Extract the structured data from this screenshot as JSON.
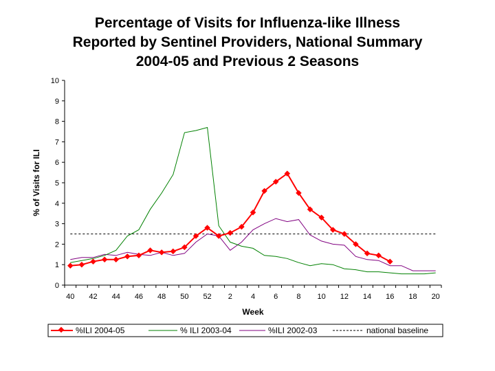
{
  "chart_data": {
    "type": "line",
    "title": [
      "Percentage of Visits for Influenza-like Illness",
      "Reported by Sentinel Providers, National Summary",
      "2004-05 and Previous 2 Seasons"
    ],
    "xlabel": "Week",
    "ylabel": "% of Visits for ILI",
    "ylim": [
      0,
      10
    ],
    "yticks": [
      0,
      1,
      2,
      3,
      4,
      5,
      6,
      7,
      8,
      9,
      10
    ],
    "weeks": [
      40,
      41,
      42,
      43,
      44,
      45,
      46,
      47,
      48,
      49,
      50,
      51,
      52,
      1,
      2,
      3,
      4,
      5,
      6,
      7,
      8,
      9,
      10,
      11,
      12,
      13,
      14,
      15,
      16,
      17,
      18,
      19,
      20
    ],
    "xtick_labels": [
      "40",
      "42",
      "44",
      "46",
      "48",
      "50",
      "52",
      "2",
      "4",
      "6",
      "8",
      "10",
      "12",
      "14",
      "16",
      "18",
      "20"
    ],
    "grid": false,
    "legend_position": "bottom",
    "series": [
      {
        "name": "%ILI 2004-05",
        "color": "#ff0000",
        "marker": "diamond",
        "values": [
          0.95,
          1.0,
          1.15,
          1.25,
          1.25,
          1.4,
          1.45,
          1.7,
          1.6,
          1.65,
          1.85,
          2.4,
          2.8,
          2.4,
          2.55,
          2.85,
          3.55,
          4.6,
          5.05,
          5.45,
          4.5,
          3.7,
          3.3,
          2.7,
          2.5,
          2.0,
          1.55,
          1.45,
          1.15
        ]
      },
      {
        "name": "% ILI 2003-04",
        "color": "#008000",
        "marker": "none",
        "values": [
          1.1,
          1.2,
          1.3,
          1.45,
          1.7,
          2.4,
          2.7,
          3.7,
          4.5,
          5.4,
          7.45,
          7.55,
          7.7,
          2.9,
          2.1,
          1.9,
          1.8,
          1.45,
          1.4,
          1.3,
          1.1,
          0.95,
          1.05,
          1.0,
          0.8,
          0.75,
          0.65,
          0.65,
          0.6,
          0.55,
          0.55,
          0.55,
          0.6
        ]
      },
      {
        "name": "%ILI 2002-03",
        "color": "#800080",
        "marker": "none",
        "values": [
          1.25,
          1.35,
          1.35,
          1.5,
          1.45,
          1.6,
          1.5,
          1.45,
          1.6,
          1.45,
          1.55,
          2.1,
          2.5,
          2.4,
          1.7,
          2.1,
          2.7,
          3.0,
          3.25,
          3.1,
          3.2,
          2.45,
          2.15,
          2.0,
          1.95,
          1.4,
          1.25,
          1.2,
          0.95,
          0.95,
          0.7,
          0.7,
          0.7
        ]
      },
      {
        "name": "national baseline",
        "color": "#000000",
        "style": "dashed",
        "value": 2.5
      }
    ]
  }
}
